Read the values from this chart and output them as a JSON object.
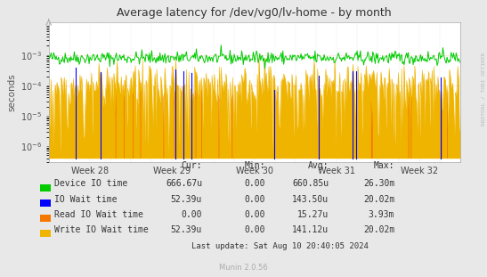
{
  "title": "Average latency for /dev/vg0/lv-home - by month",
  "ylabel": "seconds",
  "background_color": "#e8e8e8",
  "plot_bg_color": "#ffffff",
  "x_ticks": [
    "Week 28",
    "Week 29",
    "Week 30",
    "Week 31",
    "Week 32"
  ],
  "legend": [
    {
      "label": "Device IO time",
      "color": "#00cc00"
    },
    {
      "label": "IO Wait time",
      "color": "#0000ff"
    },
    {
      "label": "Read IO Wait time",
      "color": "#f57900"
    },
    {
      "label": "Write IO Wait time",
      "color": "#efb400"
    }
  ],
  "table_headers": [
    "Cur:",
    "Min:",
    "Avg:",
    "Max:"
  ],
  "table_rows": [
    [
      "Device IO time",
      "666.67u",
      "0.00",
      "660.85u",
      "26.30m"
    ],
    [
      "IO Wait time",
      "52.39u",
      "0.00",
      "143.50u",
      "20.02m"
    ],
    [
      "Read IO Wait time",
      "0.00",
      "0.00",
      "15.27u",
      "3.93m"
    ],
    [
      "Write IO Wait time",
      "52.39u",
      "0.00",
      "141.12u",
      "20.02m"
    ]
  ],
  "footer": "Last update: Sat Aug 10 20:40:05 2024",
  "munin_label": "Munin 2.0.56",
  "watermark": "RRDTOOL / TOBI OETIKER",
  "n_points": 500,
  "seed": 42
}
